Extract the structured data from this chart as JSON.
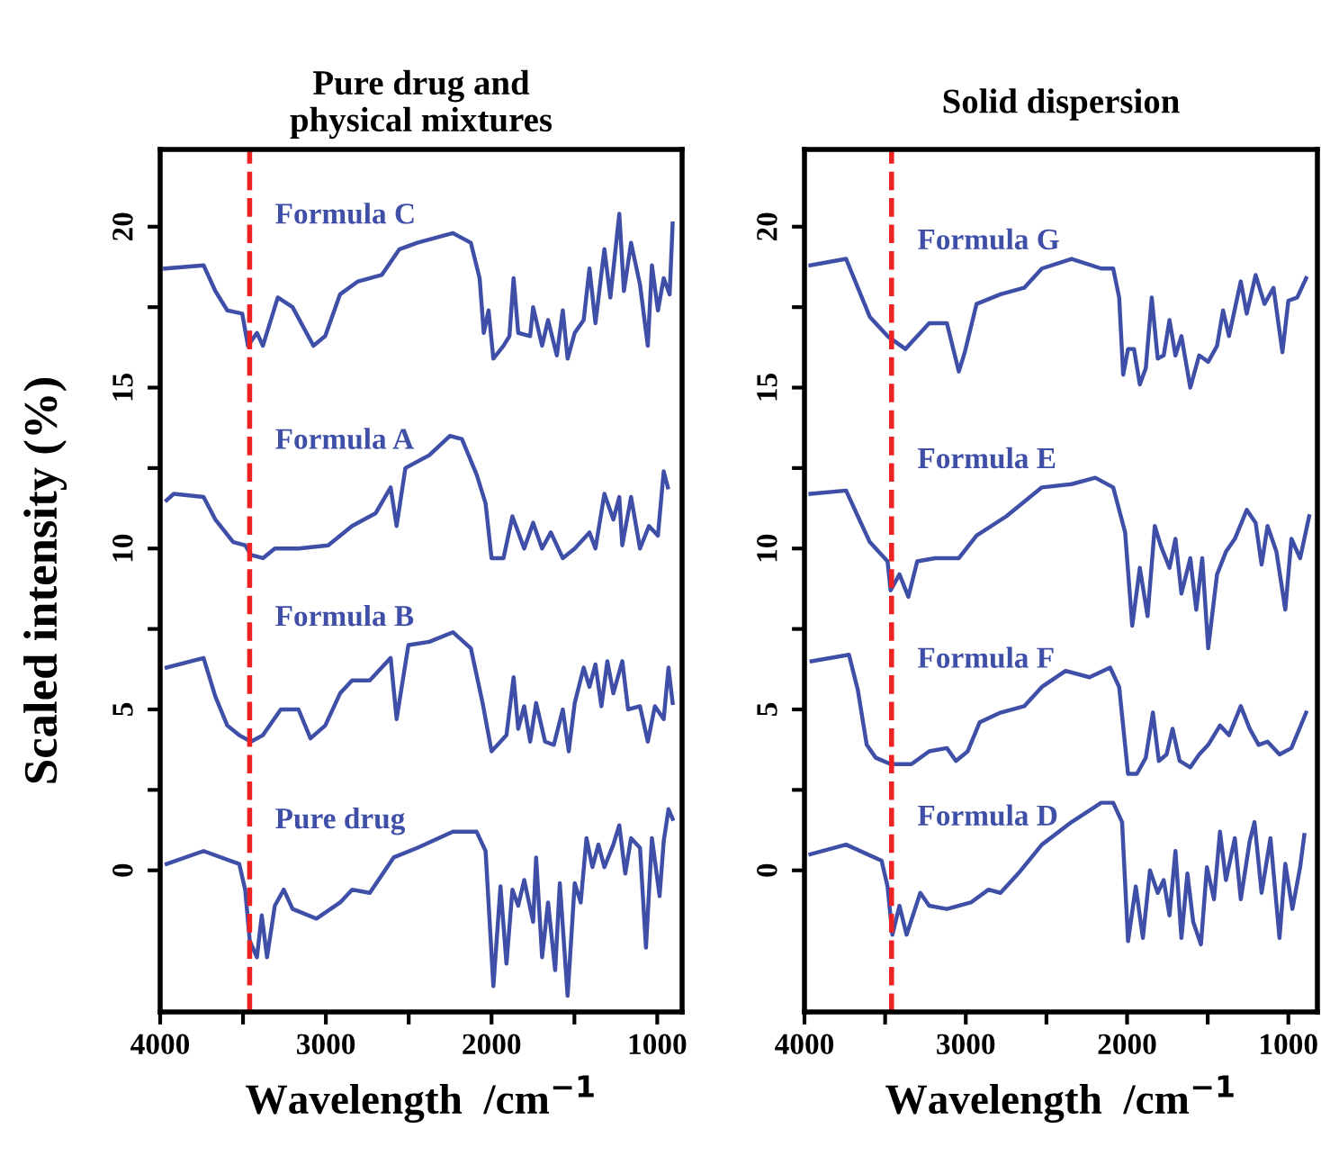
{
  "chart_data": [
    {
      "type": "line",
      "title": "Pure drug and\nphysical mixtures",
      "xlabel": "Wavelength  /cm$^{−1}$",
      "ylabel": "Scaled intensity (%)",
      "xlim": [
        4000,
        850
      ],
      "ylim": [
        -4.4,
        22.4
      ],
      "xticks": [
        4000,
        {
          "value": 3500,
          "label": null
        },
        3000,
        {
          "value": 2500,
          "label": null
        },
        2000,
        {
          "value": 1500,
          "label": null
        },
        1000
      ],
      "yticks": [
        0,
        {
          "value": 2.5,
          "label": null
        },
        5,
        {
          "value": 7.5,
          "label": null
        },
        10,
        {
          "value": 12.5,
          "label": null
        },
        15,
        {
          "value": 17.5,
          "label": null
        },
        20
      ],
      "grid": false,
      "legend": false,
      "marker": "none",
      "line_style": "solid",
      "ref_lines": [
        {
          "axis": "x",
          "value": 3460,
          "label": null,
          "color": "#ee2222",
          "line_style": "dashed"
        }
      ],
      "series": [
        {
          "name": "Formula C",
          "color": "#3f4fa8",
          "x": [
            3971,
            3738,
            3667,
            3595,
            3505,
            3470,
            3416,
            3380,
            3290,
            3201,
            3075,
            3004,
            2914,
            2806,
            2663,
            2556,
            2448,
            2233,
            2125,
            2072,
            2047,
            2018,
            1989,
            1928,
            1892,
            1867,
            1839,
            1767,
            1749,
            1695,
            1659,
            1606,
            1570,
            1541,
            1498,
            1444,
            1409,
            1373,
            1319,
            1283,
            1229,
            1201,
            1158,
            1104,
            1057,
            1032,
            996,
            961,
            925,
            907
          ],
          "values": [
            18.7,
            18.8,
            18.0,
            17.4,
            17.3,
            16.3,
            16.7,
            16.3,
            17.8,
            17.5,
            16.3,
            16.6,
            17.9,
            18.3,
            18.5,
            19.3,
            19.5,
            19.8,
            19.5,
            18.4,
            16.7,
            17.4,
            15.9,
            16.3,
            16.6,
            18.4,
            16.7,
            16.6,
            17.5,
            16.3,
            17.1,
            16.0,
            17.4,
            15.9,
            16.7,
            17.1,
            18.7,
            17.0,
            19.3,
            17.8,
            20.4,
            18.0,
            19.5,
            18.2,
            16.3,
            18.8,
            17.4,
            18.4,
            17.9,
            20.1
          ]
        },
        {
          "name": "Formula A",
          "color": "#3f4fa8",
          "x": [
            3961,
            3918,
            3738,
            3667,
            3559,
            3487,
            3452,
            3380,
            3308,
            3165,
            2986,
            2842,
            2699,
            2609,
            2573,
            2520,
            2376,
            2251,
            2179,
            2090,
            2036,
            2000,
            1928,
            1874,
            1803,
            1749,
            1695,
            1642,
            1570,
            1498,
            1409,
            1373,
            1319,
            1265,
            1229,
            1211,
            1158,
            1104,
            1050,
            996,
            961,
            936
          ],
          "values": [
            11.5,
            11.7,
            11.6,
            10.9,
            10.2,
            10.1,
            9.8,
            9.7,
            10.0,
            10.0,
            10.1,
            10.7,
            11.1,
            11.9,
            10.7,
            12.5,
            12.9,
            13.5,
            13.4,
            12.3,
            11.4,
            9.7,
            9.7,
            11.0,
            10.0,
            10.8,
            10.0,
            10.5,
            9.7,
            10.0,
            10.5,
            10.0,
            11.7,
            10.9,
            11.6,
            10.1,
            11.6,
            10.0,
            10.7,
            10.4,
            12.4,
            11.9
          ]
        },
        {
          "name": "Formula B",
          "color": "#3f4fa8",
          "x": [
            3961,
            3738,
            3667,
            3595,
            3523,
            3452,
            3380,
            3272,
            3165,
            3093,
            3004,
            2914,
            2842,
            2735,
            2609,
            2573,
            2502,
            2376,
            2233,
            2125,
            2054,
            2000,
            1946,
            1910,
            1867,
            1839,
            1803,
            1767,
            1731,
            1677,
            1624,
            1570,
            1534,
            1498,
            1444,
            1409,
            1373,
            1337,
            1301,
            1265,
            1211,
            1176,
            1104,
            1057,
            1014,
            961,
            932,
            907
          ],
          "values": [
            6.3,
            6.6,
            5.4,
            4.5,
            4.2,
            4.0,
            4.2,
            5.0,
            5.0,
            4.1,
            4.5,
            5.5,
            5.9,
            5.9,
            6.6,
            4.7,
            7.0,
            7.1,
            7.4,
            6.9,
            5.2,
            3.7,
            4.0,
            4.2,
            6.0,
            4.4,
            5.1,
            4.0,
            5.2,
            4.0,
            3.9,
            5.0,
            3.7,
            5.2,
            6.3,
            5.7,
            6.4,
            5.1,
            6.5,
            5.5,
            6.5,
            5.0,
            5.1,
            4.0,
            5.1,
            4.7,
            6.3,
            5.2
          ]
        },
        {
          "name": "Pure drug",
          "color": "#3f4fa8",
          "x": [
            3961,
            3738,
            3523,
            3487,
            3459,
            3416,
            3387,
            3355,
            3308,
            3254,
            3201,
            3057,
            2914,
            2842,
            2735,
            2591,
            2448,
            2233,
            2090,
            2036,
            1989,
            1946,
            1910,
            1874,
            1839,
            1803,
            1749,
            1731,
            1695,
            1659,
            1616,
            1588,
            1541,
            1498,
            1462,
            1427,
            1391,
            1355,
            1319,
            1265,
            1229,
            1193,
            1158,
            1104,
            1068,
            1032,
            986,
            961,
            932,
            907
          ],
          "values": [
            0.2,
            0.6,
            0.2,
            -0.6,
            -2.2,
            -2.7,
            -1.4,
            -2.7,
            -1.1,
            -0.6,
            -1.2,
            -1.5,
            -1.0,
            -0.6,
            -0.7,
            0.4,
            0.7,
            1.2,
            1.2,
            0.6,
            -3.6,
            -0.5,
            -2.9,
            -0.6,
            -1.1,
            -0.3,
            -1.6,
            0.4,
            -2.7,
            -1.0,
            -3.1,
            -0.4,
            -3.9,
            -0.4,
            -1.0,
            1.0,
            0.1,
            0.8,
            0.1,
            0.8,
            1.4,
            -0.1,
            1.0,
            0.7,
            -2.4,
            1.0,
            -0.8,
            0.9,
            1.9,
            1.6
          ]
        }
      ]
    },
    {
      "type": "line",
      "title": "Solid dispersion",
      "xlabel": "Wavelength  /cm$^{−1}$",
      "xlim": [
        4000,
        820
      ],
      "ylim": [
        -4.4,
        22.4
      ],
      "xticks": [
        4000,
        {
          "value": 3500,
          "label": null
        },
        3000,
        {
          "value": 2500,
          "label": null
        },
        2000,
        {
          "value": 1500,
          "label": null
        },
        1000
      ],
      "yticks": [
        0,
        {
          "value": 2.5,
          "label": null
        },
        5,
        {
          "value": 7.5,
          "label": null
        },
        10,
        {
          "value": 12.5,
          "label": null
        },
        15,
        {
          "value": 17.5,
          "label": null
        },
        20
      ],
      "grid": false,
      "legend": false,
      "marker": "none",
      "line_style": "solid",
      "ref_lines": [
        {
          "axis": "x",
          "value": 3460,
          "label": null,
          "color": "#ee2222",
          "line_style": "dashed"
        }
      ],
      "series": [
        {
          "name": "Formula G",
          "color": "#3f4fa8",
          "x": [
            3963,
            3742,
            3669,
            3595,
            3485,
            3374,
            3227,
            3117,
            3043,
            3006,
            2933,
            2785,
            2638,
            2528,
            2344,
            2160,
            2086,
            2049,
            2024,
            1994,
            1957,
            1921,
            1884,
            1847,
            1810,
            1773,
            1737,
            1700,
            1663,
            1608,
            1553,
            1497,
            1442,
            1405,
            1368,
            1295,
            1258,
            1203,
            1148,
            1092,
            1037,
            1000,
            945,
            890
          ],
          "values": [
            18.8,
            19.0,
            18.1,
            17.2,
            16.6,
            16.2,
            17.0,
            17.0,
            15.5,
            16.1,
            17.6,
            17.9,
            18.1,
            18.7,
            19.0,
            18.7,
            18.7,
            17.8,
            15.4,
            16.2,
            16.2,
            15.1,
            15.6,
            17.8,
            15.9,
            16.0,
            17.1,
            16.0,
            16.6,
            15.0,
            16.0,
            15.8,
            16.3,
            17.4,
            16.6,
            18.3,
            17.3,
            18.5,
            17.6,
            18.1,
            16.1,
            17.7,
            17.8,
            18.4
          ]
        },
        {
          "name": "Formula E",
          "color": "#3f4fa8",
          "x": [
            3963,
            3742,
            3669,
            3595,
            3485,
            3466,
            3411,
            3356,
            3301,
            3190,
            3043,
            2933,
            2749,
            2528,
            2344,
            2197,
            2086,
            2012,
            1968,
            1921,
            1873,
            1828,
            1792,
            1737,
            1700,
            1663,
            1608,
            1571,
            1534,
            1497,
            1442,
            1387,
            1332,
            1258,
            1203,
            1166,
            1129,
            1074,
            1019,
            981,
            927,
            871
          ],
          "values": [
            11.7,
            11.8,
            11.0,
            10.2,
            9.6,
            8.7,
            9.2,
            8.5,
            9.6,
            9.7,
            9.7,
            10.4,
            11.0,
            11.9,
            12.0,
            12.2,
            11.9,
            10.5,
            7.6,
            9.4,
            7.9,
            10.7,
            10.1,
            9.4,
            10.3,
            8.6,
            9.7,
            8.1,
            9.7,
            6.9,
            9.2,
            9.9,
            10.3,
            11.2,
            10.8,
            9.5,
            10.7,
            9.9,
            8.1,
            10.3,
            9.7,
            11.0
          ]
        },
        {
          "name": "Formula F",
          "color": "#3f4fa8",
          "x": [
            3956,
            3724,
            3669,
            3614,
            3558,
            3466,
            3337,
            3227,
            3117,
            3061,
            2988,
            2914,
            2785,
            2638,
            2528,
            2381,
            2233,
            2105,
            2049,
            1994,
            1939,
            1884,
            1840,
            1803,
            1755,
            1718,
            1674,
            1608,
            1553,
            1497,
            1424,
            1368,
            1295,
            1240,
            1184,
            1129,
            1055,
            981,
            890
          ],
          "values": [
            6.5,
            6.7,
            5.6,
            3.9,
            3.5,
            3.3,
            3.3,
            3.7,
            3.8,
            3.4,
            3.7,
            4.6,
            4.9,
            5.1,
            5.7,
            6.2,
            6.0,
            6.3,
            5.7,
            3.0,
            3.0,
            3.5,
            4.9,
            3.4,
            3.6,
            4.4,
            3.4,
            3.2,
            3.6,
            3.9,
            4.5,
            4.2,
            5.1,
            4.4,
            3.9,
            4.0,
            3.6,
            3.8,
            4.9
          ]
        },
        {
          "name": "Formula D",
          "color": "#3f4fa8",
          "x": [
            3963,
            3742,
            3522,
            3485,
            3455,
            3411,
            3367,
            3282,
            3227,
            3117,
            2969,
            2859,
            2785,
            2675,
            2528,
            2344,
            2160,
            2086,
            2031,
            1994,
            1946,
            1902,
            1858,
            1810,
            1773,
            1737,
            1700,
            1663,
            1626,
            1590,
            1542,
            1505,
            1461,
            1424,
            1387,
            1332,
            1295,
            1240,
            1210,
            1166,
            1111,
            1055,
            1019,
            975,
            927,
            901
          ],
          "values": [
            0.5,
            0.8,
            0.3,
            -0.5,
            -2.0,
            -1.1,
            -2.0,
            -0.7,
            -1.1,
            -1.2,
            -1.0,
            -0.6,
            -0.7,
            -0.1,
            0.8,
            1.5,
            2.1,
            2.1,
            1.5,
            -2.2,
            -0.5,
            -2.1,
            0.0,
            -0.7,
            -0.3,
            -1.4,
            0.6,
            -2.1,
            -0.1,
            -1.6,
            -2.3,
            0.1,
            -0.9,
            1.2,
            -0.3,
            1.0,
            -0.9,
            0.9,
            1.5,
            -0.7,
            1.0,
            -2.1,
            0.2,
            -1.2,
            0.1,
            1.1
          ]
        }
      ]
    }
  ]
}
